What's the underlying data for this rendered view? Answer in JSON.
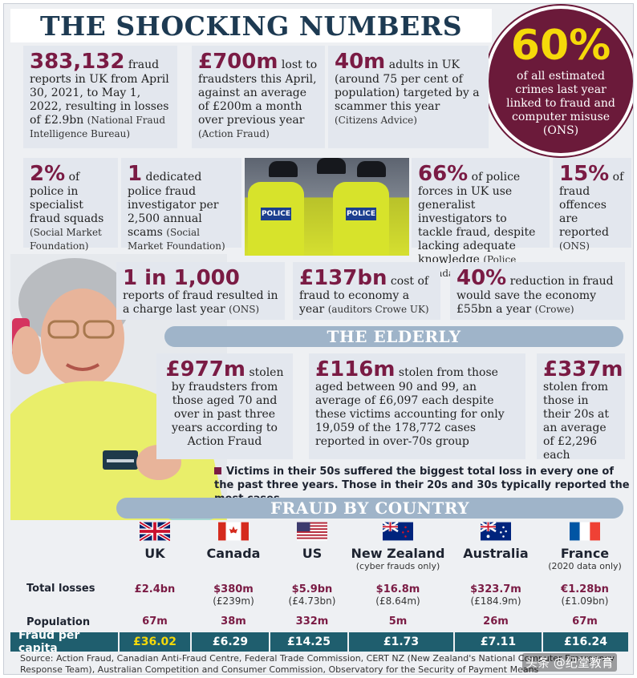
{
  "title": "THE SHOCKING NUMBERS",
  "badge": {
    "value": "60%",
    "text": "of all estimated crimes last year linked to fraud and computer misuse (ONS)"
  },
  "stats_row1": [
    {
      "num": "383,132",
      "text": " fraud reports in UK from April 30, 2021, to May 1, 2022, resulting in losses of £2.9bn ",
      "src": "(National Fraud Intelligence Bureau)"
    },
    {
      "num": "£700m",
      "text": " lost to fraudsters this April, against an average of £200m a month over previous year ",
      "src": "(Action Fraud)"
    },
    {
      "num": "40m",
      "text": " adults in UK (around 75 per cent of population) targeted by a scammer this year ",
      "src": "(Citizens Advice)"
    }
  ],
  "stats_row2": [
    {
      "num": "2%",
      "text": " of police in specialist fraud squads ",
      "src": "(Social Market Foundation)"
    },
    {
      "num": "1",
      "text": " dedicated police fraud investigator per 2,500 annual scams ",
      "src": "(Social Market Foundation)"
    },
    {
      "num": "66%",
      "text": " of police forces in UK use generalist investigators to tackle fraud, despite lacking adequate knowledge ",
      "src": "(Police Foundation)"
    },
    {
      "num": "15%",
      "text": " of fraud offences are reported ",
      "src": "(ONS)"
    }
  ],
  "police_photo": {
    "tag": "POLICE"
  },
  "stats_row3": [
    {
      "num": "1 in 1,000",
      "text": " reports of fraud resulted in a charge last year ",
      "src": "(ONS)"
    },
    {
      "num": "£137bn",
      "text": " cost of fraud to economy a year ",
      "src": "(auditors Crowe UK)"
    },
    {
      "num": "40%",
      "text": " reduction in fraud would save the economy £55bn a year ",
      "src": "(Crowe)"
    }
  ],
  "elderly": {
    "heading": "THE ELDERLY",
    "items": [
      {
        "num": "£977m",
        "text": " stolen by fraudsters from those aged 70 and over in past three years according to Action Fraud"
      },
      {
        "num": "£116m",
        "text": " stolen from those aged between 90 and 99, an average of £6,097 each despite these victims accounting for only 19,059 of the 178,772 cases reported in over-70s group"
      },
      {
        "num": "£337m",
        "text": " stolen from those in their 20s at an average of £2,296 each"
      }
    ],
    "note": "Victims in their 50s suffered the biggest total loss in every one of the past three years. Those in their 20s and 30s typically reported the most cases"
  },
  "country": {
    "heading": "FRAUD BY COUNTRY",
    "row_labels": {
      "losses": "Total losses",
      "population": "Population",
      "capita": "Fraud per capita"
    },
    "columns": [
      {
        "name": "UK",
        "note": "",
        "flag": "uk-flag",
        "loss": "£2.4bn",
        "loss_gbp": "",
        "population": "67m",
        "capita": "£36.02"
      },
      {
        "name": "Canada",
        "note": "",
        "flag": "canada-flag",
        "loss": "$380m",
        "loss_gbp": "(£239m)",
        "population": "38m",
        "capita": "£6.29"
      },
      {
        "name": "US",
        "note": "",
        "flag": "us-flag",
        "loss": "$5.9bn",
        "loss_gbp": "(£4.73bn)",
        "population": "332m",
        "capita": "£14.25"
      },
      {
        "name": "New Zealand",
        "note": "(cyber frauds only)",
        "flag": "new-zealand-flag",
        "loss": "$16.8m",
        "loss_gbp": "(£8.64m)",
        "population": "5m",
        "capita": "£1.73"
      },
      {
        "name": "Australia",
        "note": "",
        "flag": "australia-flag",
        "loss": "$323.7m",
        "loss_gbp": "(£184.9m)",
        "population": "26m",
        "capita": "£7.11"
      },
      {
        "name": "France",
        "note": "(2020 data only)",
        "flag": "france-flag",
        "loss": "€1.28bn",
        "loss_gbp": "(£1.09bn)",
        "population": "67m",
        "capita": "£16.24"
      }
    ]
  },
  "sources": "Source: Action Fraud, Canadian Anti-Fraud Centre, Federal Trade Commission, CERT NZ (New Zealand's National Computer Emergency Response Team), Australian Competition and Consumer Commission, Observatory for the Security of Payment Means",
  "watermark": "头条 @纪堂教育",
  "colors": {
    "accent": "#7a1b44",
    "navy": "#1d3a52",
    "badge": "#6b1a3a",
    "capita_bar": "#1f5e6e",
    "yellow": "#f5d90a"
  }
}
